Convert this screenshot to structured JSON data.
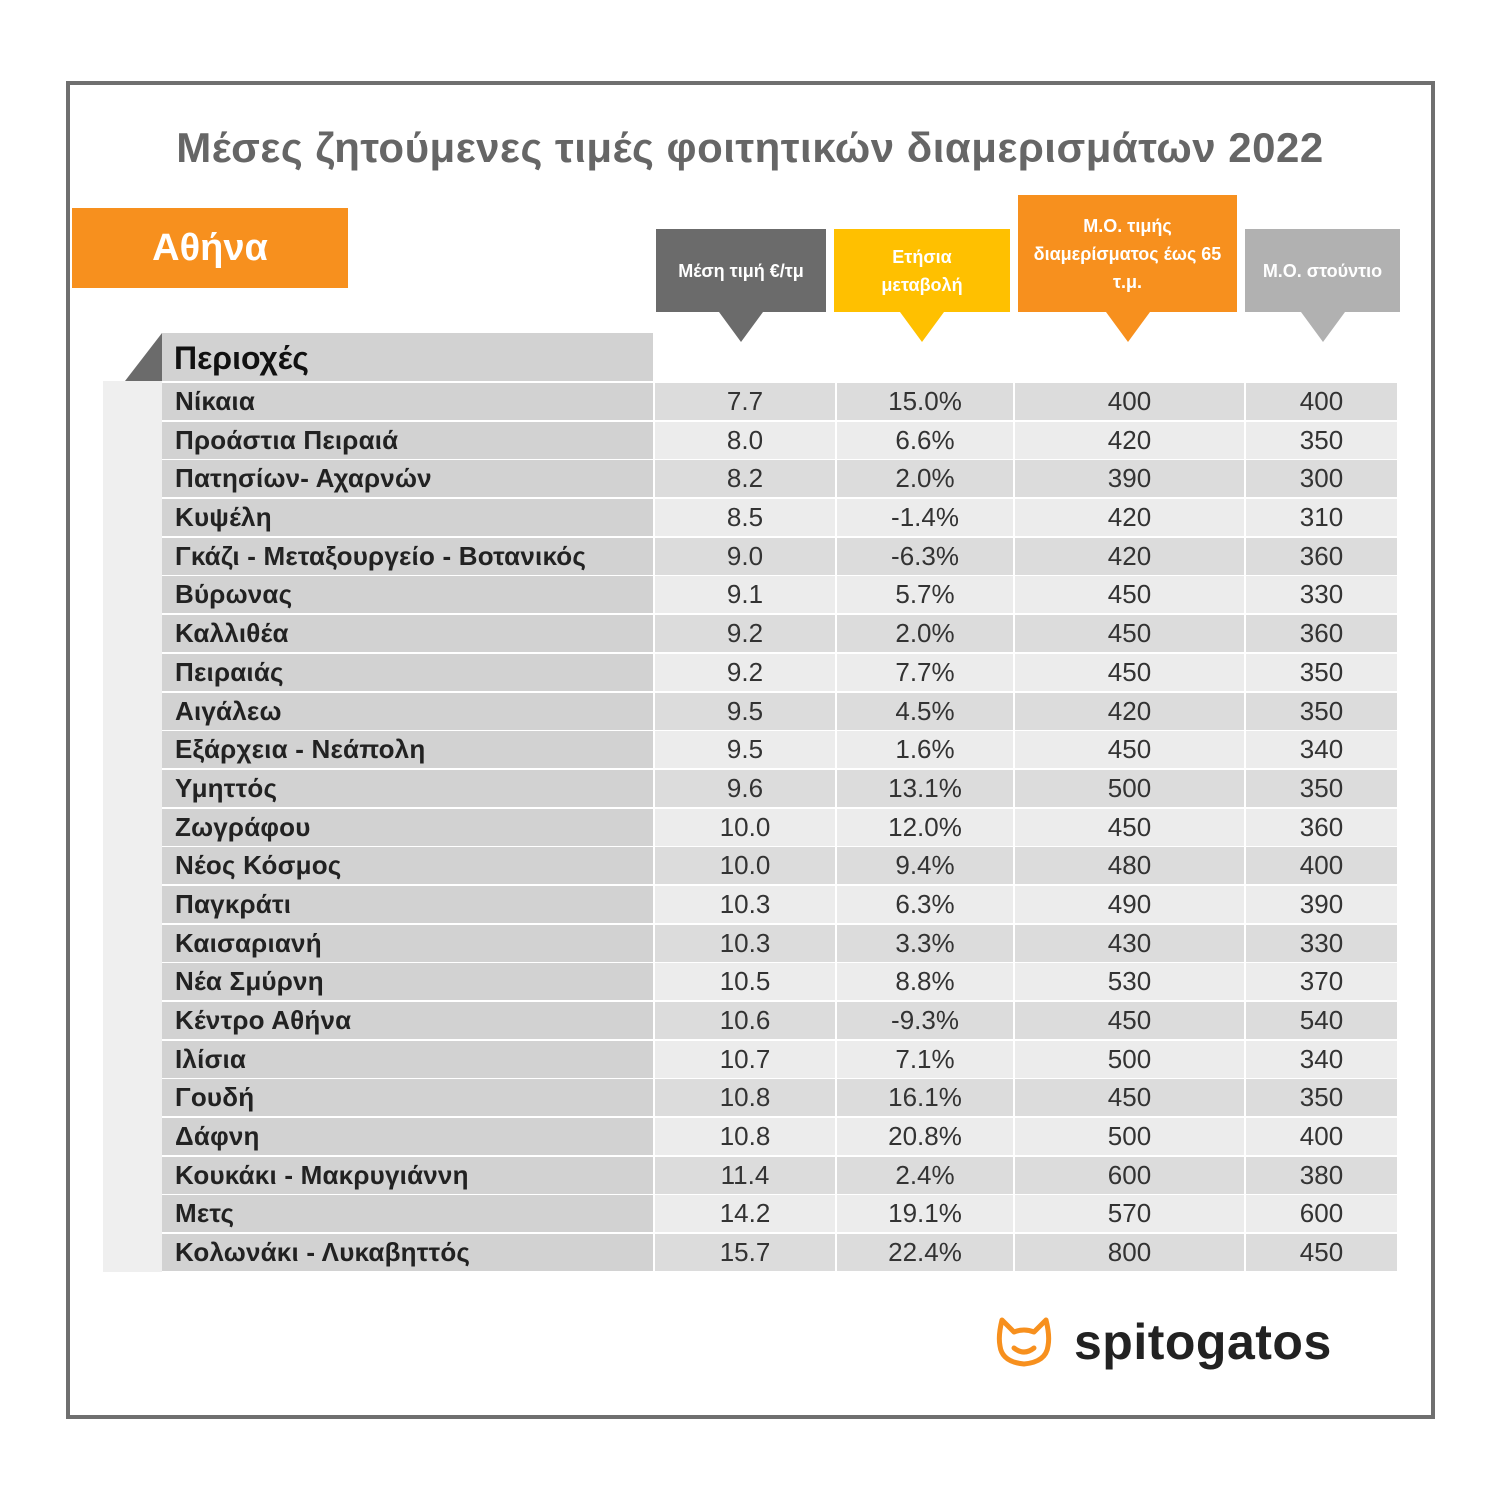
{
  "title": "Μέσες ζητούμενες τιμές φοιτητικών διαμερισμάτων 2022",
  "city": "Αθήνα",
  "headers": {
    "areas": "Περιοχές",
    "avg_price": "Μέση τιμή €/τμ",
    "annual_change": "Ετήσια μεταβολή",
    "apartment_price": "Μ.Ο. τιμής διαμερίσματος έως 65 τ.μ.",
    "studio_price": "Μ.Ο. στούντιο"
  },
  "rows": [
    {
      "area": "Νίκαια",
      "avg": "7.7",
      "change": "15.0%",
      "apt": "400",
      "studio": "400"
    },
    {
      "area": "Προάστια Πειραιά",
      "avg": "8.0",
      "change": "6.6%",
      "apt": "420",
      "studio": "350"
    },
    {
      "area": "Πατησίων- Αχαρνών",
      "avg": "8.2",
      "change": "2.0%",
      "apt": "390",
      "studio": "300"
    },
    {
      "area": "Κυψέλη",
      "avg": "8.5",
      "change": "-1.4%",
      "apt": "420",
      "studio": "310"
    },
    {
      "area": "Γκάζι - Μεταξουργείο - Βοτανικός",
      "avg": "9.0",
      "change": "-6.3%",
      "apt": "420",
      "studio": "360"
    },
    {
      "area": "Βύρωνας",
      "avg": "9.1",
      "change": "5.7%",
      "apt": "450",
      "studio": "330"
    },
    {
      "area": "Καλλιθέα",
      "avg": "9.2",
      "change": "2.0%",
      "apt": "450",
      "studio": "360"
    },
    {
      "area": "Πειραιάς",
      "avg": "9.2",
      "change": "7.7%",
      "apt": "450",
      "studio": "350"
    },
    {
      "area": "Αιγάλεω",
      "avg": "9.5",
      "change": "4.5%",
      "apt": "420",
      "studio": "350"
    },
    {
      "area": "Εξάρχεια - Νεάπολη",
      "avg": "9.5",
      "change": "1.6%",
      "apt": "450",
      "studio": "340"
    },
    {
      "area": "Υμηττός",
      "avg": "9.6",
      "change": "13.1%",
      "apt": "500",
      "studio": "350"
    },
    {
      "area": "Ζωγράφου",
      "avg": "10.0",
      "change": "12.0%",
      "apt": "450",
      "studio": "360"
    },
    {
      "area": "Νέος Κόσμος",
      "avg": "10.0",
      "change": "9.4%",
      "apt": "480",
      "studio": "400"
    },
    {
      "area": "Παγκράτι",
      "avg": "10.3",
      "change": "6.3%",
      "apt": "490",
      "studio": "390"
    },
    {
      "area": "Καισαριανή",
      "avg": "10.3",
      "change": "3.3%",
      "apt": "430",
      "studio": "330"
    },
    {
      "area": "Νέα Σμύρνη",
      "avg": "10.5",
      "change": "8.8%",
      "apt": "530",
      "studio": "370"
    },
    {
      "area": "Κέντρο Αθήνα",
      "avg": "10.6",
      "change": "-9.3%",
      "apt": "450",
      "studio": "540"
    },
    {
      "area": "Ιλίσια",
      "avg": "10.7",
      "change": "7.1%",
      "apt": "500",
      "studio": "340"
    },
    {
      "area": "Γουδή",
      "avg": "10.8",
      "change": "16.1%",
      "apt": "450",
      "studio": "350"
    },
    {
      "area": "Δάφνη",
      "avg": "10.8",
      "change": "20.8%",
      "apt": "500",
      "studio": "400"
    },
    {
      "area": "Κουκάκι - Μακρυγιάννη",
      "avg": "11.4",
      "change": "2.4%",
      "apt": "600",
      "studio": "380"
    },
    {
      "area": "Μετς",
      "avg": "14.2",
      "change": "19.1%",
      "apt": "570",
      "studio": "600"
    },
    {
      "area": "Κολωνάκι - Λυκαβηττός",
      "avg": "15.7",
      "change": "22.4%",
      "apt": "800",
      "studio": "450"
    }
  ],
  "logo": {
    "text": "spitogatos",
    "icon": "cat-head-icon",
    "color": "#f7901e"
  }
}
